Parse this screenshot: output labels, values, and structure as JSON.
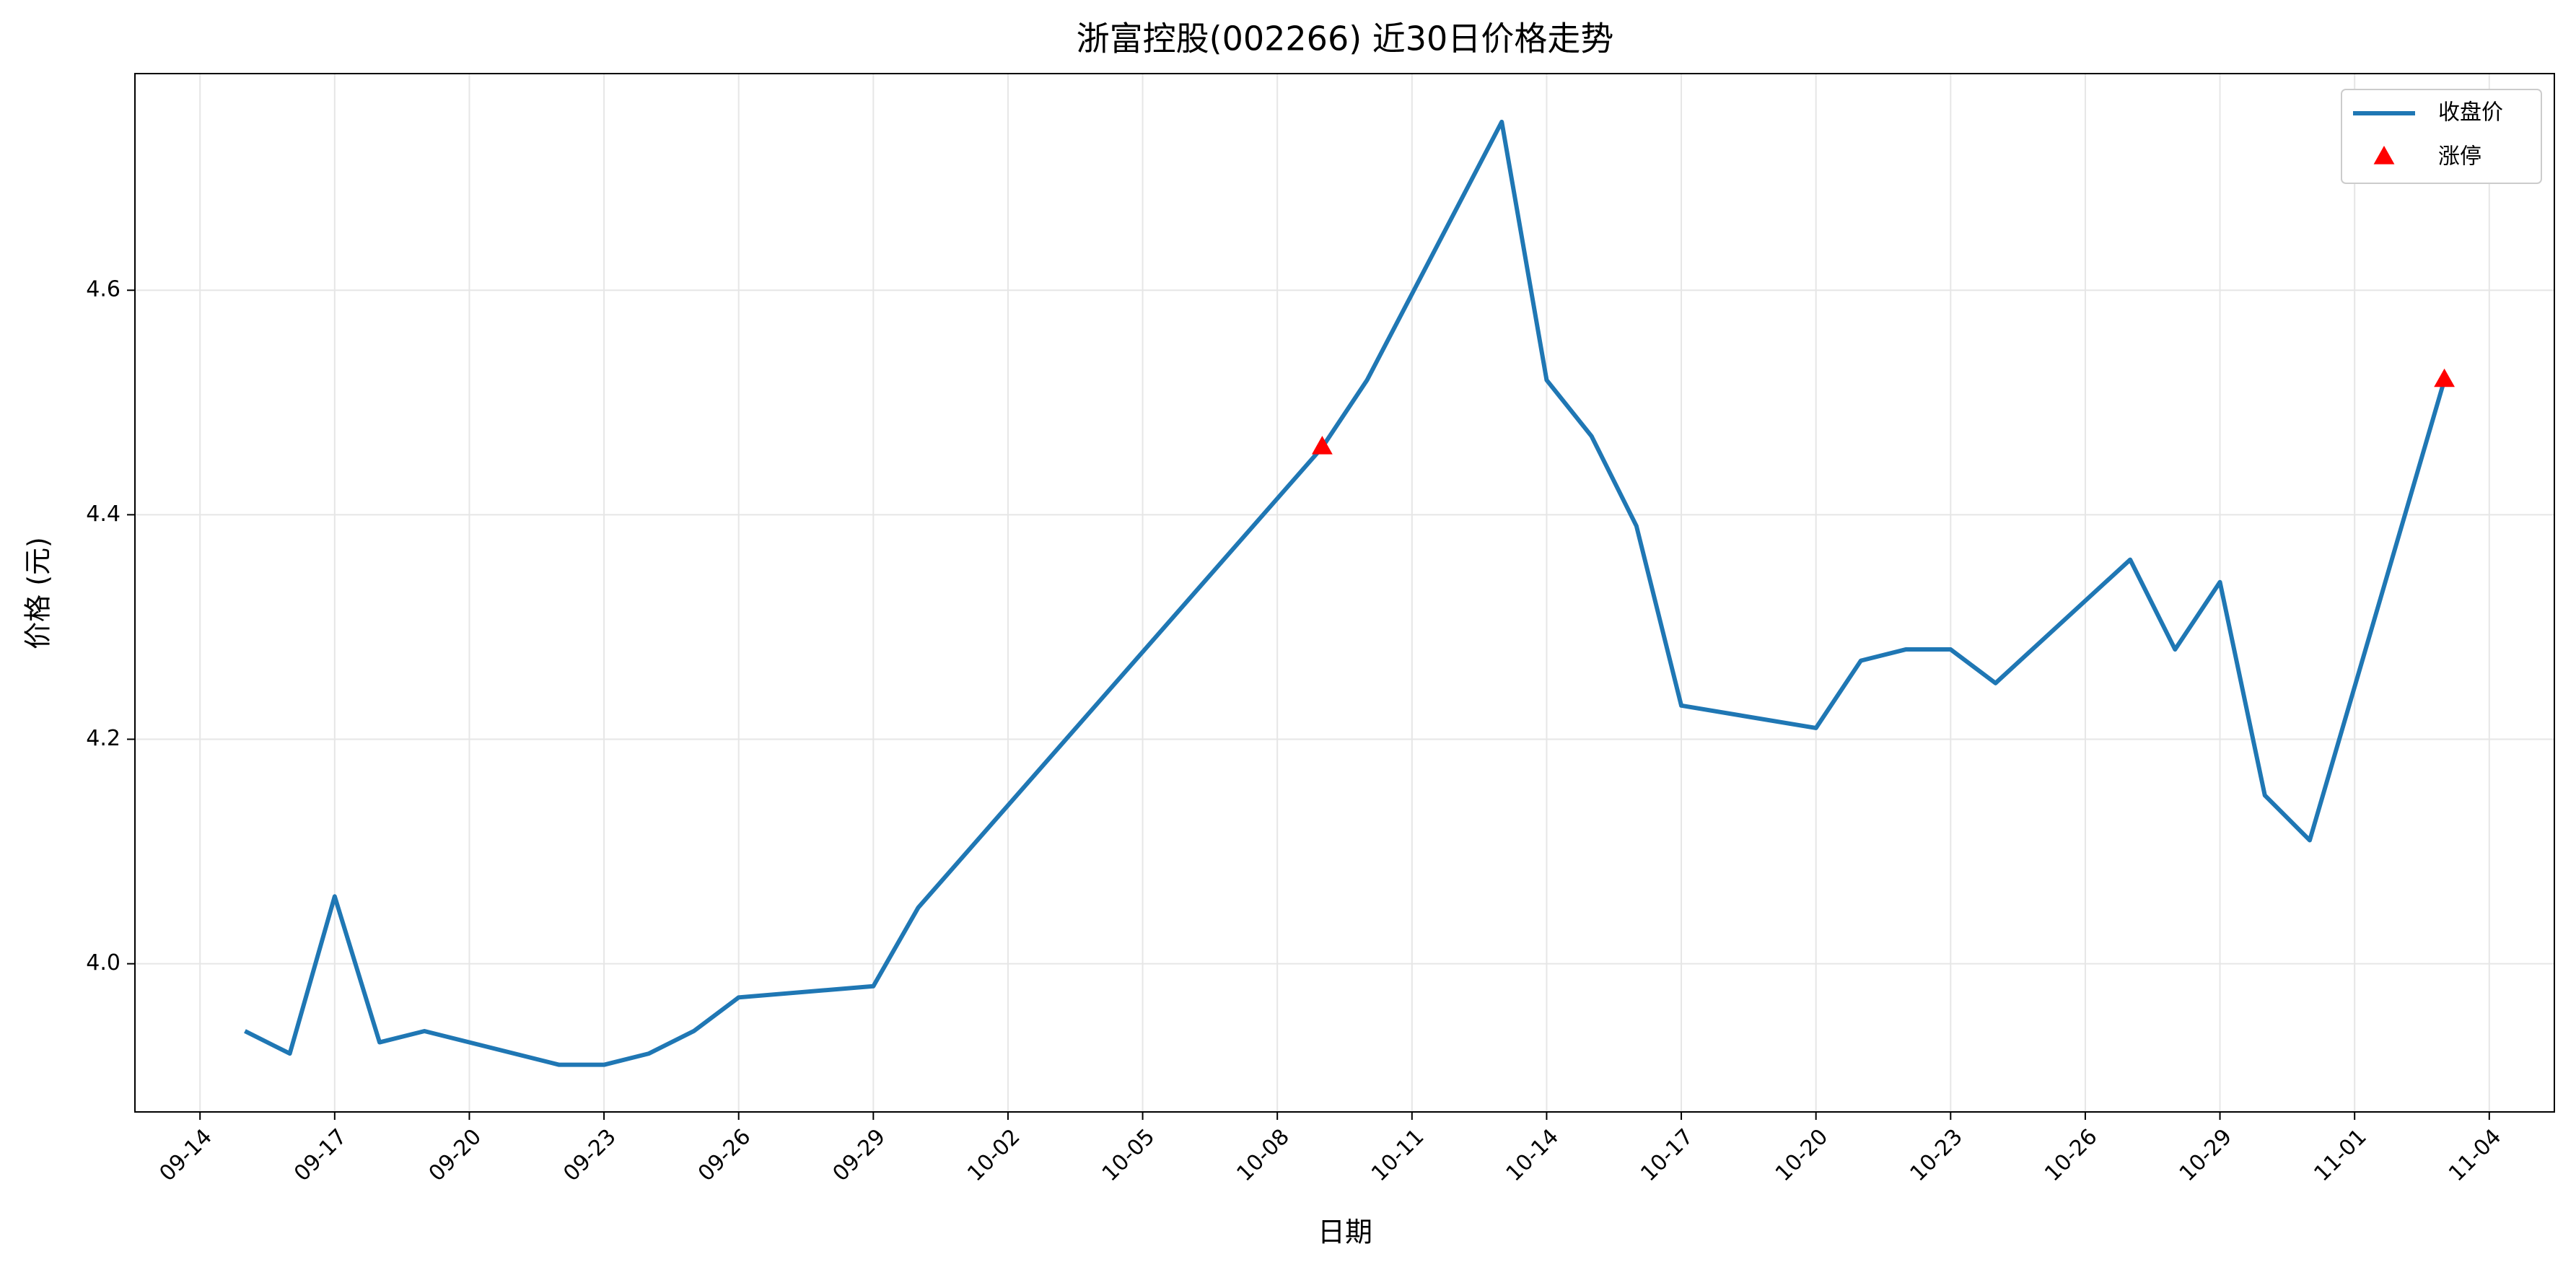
{
  "chart_data": {
    "type": "line",
    "title": "浙富控股(002266) 近30日价格走势",
    "xlabel": "日期",
    "ylabel": "价格 (元)",
    "series": [
      {
        "name": "收盘价",
        "type": "line",
        "color": "#1f77b4",
        "x": [
          "09-15",
          "09-16",
          "09-17",
          "09-18",
          "09-19",
          "09-22",
          "09-23",
          "09-24",
          "09-25",
          "09-26",
          "09-29",
          "09-30",
          "10-09",
          "10-10",
          "10-13",
          "10-14",
          "10-15",
          "10-16",
          "10-17",
          "10-20",
          "10-21",
          "10-22",
          "10-23",
          "10-24",
          "10-27",
          "10-28",
          "10-29",
          "10-30",
          "10-31",
          "11-03"
        ],
        "values": [
          3.94,
          3.92,
          4.06,
          3.93,
          3.94,
          3.91,
          3.91,
          3.92,
          3.94,
          3.97,
          3.98,
          4.05,
          4.46,
          4.52,
          4.75,
          4.52,
          4.47,
          4.39,
          4.23,
          4.21,
          4.27,
          4.28,
          4.28,
          4.25,
          4.36,
          4.28,
          4.34,
          4.15,
          4.11,
          4.52
        ]
      },
      {
        "name": "涨停",
        "type": "scatter",
        "marker": "triangle",
        "color": "#ff0000",
        "x": [
          "10-09",
          "11-03"
        ],
        "values": [
          4.46,
          4.52
        ]
      }
    ],
    "ylim": [
      3.868,
      4.793
    ],
    "yticks": [
      {
        "value": 4,
        "label": "4.0"
      },
      4.2,
      4.4,
      4.6
    ],
    "xticks": [
      "09-14",
      "09-17",
      "09-20",
      "09-23",
      "09-26",
      "09-29",
      "10-02",
      "10-05",
      "10-08",
      "10-11",
      "10-14",
      "10-17",
      "10-20",
      "10-23",
      "10-26",
      "10-29",
      "11-01",
      "11-04"
    ],
    "grid": true,
    "legend": "upper-right"
  }
}
